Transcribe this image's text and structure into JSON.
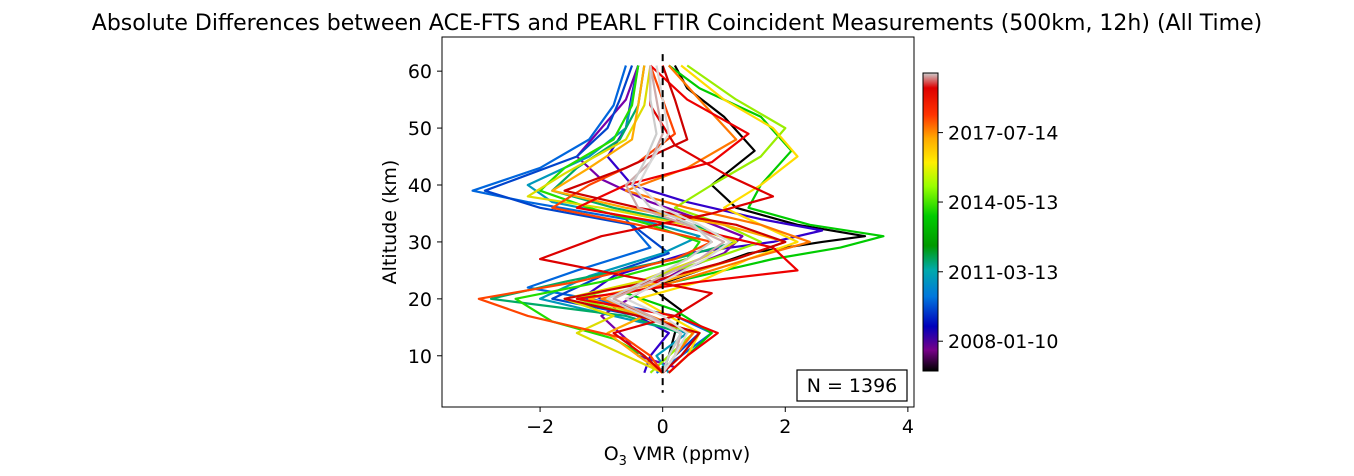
{
  "chart_data": {
    "type": "line",
    "title": "Absolute Differences between ACE-FTS and PEARL FTIR Coincident Measurements (500km, 12h) (All Time)",
    "xlabel_main": "O",
    "xlabel_sub": "3",
    "xlabel_rest": " VMR (ppmv)",
    "ylabel": "Altitude (km)",
    "xlim": [
      -3.6,
      4.1
    ],
    "ylim": [
      1,
      66
    ],
    "xticks": [
      -2,
      0,
      2,
      4
    ],
    "xtick_labels": [
      "−2",
      "0",
      "2",
      "4"
    ],
    "yticks": [
      10,
      20,
      30,
      40,
      50,
      60
    ],
    "ytick_labels": [
      "10",
      "20",
      "30",
      "40",
      "50",
      "60"
    ],
    "zero_line": {
      "x": 0,
      "style": "dashed",
      "color": "#000000"
    },
    "annotation": "N = 1396",
    "colorbar": {
      "colormap": "nipy_spectral",
      "tick_labels": [
        "2008-01-10",
        "2011-03-13",
        "2014-05-13",
        "2017-07-14"
      ],
      "tick_fractions": [
        0.1,
        0.333,
        0.567,
        0.8
      ]
    },
    "series_summary": {
      "count": 1396,
      "altitude_range": [
        6,
        61
      ],
      "note_values": "Each line is one coincident profile; x = ACE-FTS minus PEARL FTIR O3 VMR difference (ppmv) vs altitude (km)."
    },
    "series": [
      {
        "color": "#000000",
        "x": [
          0.0,
          0.1,
          0.2,
          0.3,
          -0.2,
          0.6,
          1.4,
          2.6,
          3.3,
          2.2,
          1.2,
          0.8,
          1.5,
          1.0,
          0.4,
          0.2
        ],
        "y": [
          7,
          10,
          14,
          18,
          22,
          25,
          28,
          30,
          31,
          33,
          36,
          40,
          46,
          52,
          57,
          61
        ]
      },
      {
        "color": "#3300cc",
        "x": [
          -0.3,
          -0.2,
          0.1,
          -0.6,
          -1.2,
          -0.8,
          0.4,
          1.8,
          2.6,
          1.6,
          0.4,
          -0.5,
          -0.9,
          -0.6,
          -0.5,
          -0.4
        ],
        "y": [
          7,
          10,
          14,
          18,
          21,
          24,
          28,
          30,
          32,
          34,
          37,
          40,
          45,
          50,
          56,
          61
        ]
      },
      {
        "color": "#7700aa",
        "x": [
          0.2,
          -0.4,
          -0.6,
          -1.0,
          -0.4,
          0.3,
          1.0,
          1.3,
          0.6,
          -0.2,
          -1.0,
          -1.4,
          -1.0,
          -0.6,
          -0.4
        ],
        "y": [
          8,
          10,
          13,
          17,
          21,
          25,
          28,
          31,
          34,
          37,
          41,
          45,
          50,
          55,
          61
        ]
      },
      {
        "color": "#0066dd",
        "x": [
          -0.1,
          0.3,
          0.8,
          0.2,
          -1.2,
          -2.2,
          -1.4,
          -0.2,
          -0.6,
          -2.2,
          -3.1,
          -2.0,
          -1.2,
          -0.8,
          -0.6
        ],
        "y": [
          7,
          10,
          14,
          17,
          20,
          22,
          25,
          29,
          34,
          37,
          39,
          43,
          48,
          54,
          61
        ]
      },
      {
        "color": "#0044cc",
        "x": [
          0.0,
          0.2,
          0.6,
          -0.4,
          -1.8,
          -1.0,
          0.1,
          -0.5,
          -2.0,
          -2.9,
          -2.4,
          -1.4,
          -0.9,
          -0.7,
          -0.5
        ],
        "y": [
          7,
          10,
          14,
          17,
          20,
          24,
          28,
          33,
          36,
          39,
          41,
          45,
          50,
          55,
          61
        ]
      },
      {
        "color": "#0099bb",
        "x": [
          0.1,
          -0.1,
          0.4,
          -0.8,
          -2.0,
          -1.2,
          0.0,
          0.6,
          -0.4,
          -1.8,
          -2.2,
          -1.2,
          -0.6,
          -0.5,
          -0.4
        ],
        "y": [
          7,
          10,
          14,
          17,
          20,
          24,
          28,
          31,
          34,
          37,
          40,
          45,
          50,
          55,
          61
        ]
      },
      {
        "color": "#00aa66",
        "x": [
          0.0,
          0.1,
          0.3,
          -0.6,
          -2.8,
          -1.6,
          0.2,
          1.2,
          0.5,
          -0.8,
          -1.8,
          -1.4,
          -0.7,
          -0.4,
          -0.3
        ],
        "y": [
          7,
          10,
          14,
          17,
          20,
          23,
          27,
          30,
          33,
          36,
          39,
          43,
          48,
          54,
          61
        ]
      },
      {
        "color": "#00cc00",
        "x": [
          0.1,
          0.4,
          0.8,
          0.2,
          -0.6,
          0.6,
          1.8,
          2.9,
          3.6,
          2.4,
          1.4,
          1.6,
          2.1,
          1.6,
          0.6,
          0.1
        ],
        "y": [
          7,
          10,
          14,
          18,
          21,
          24,
          27,
          29,
          31,
          33,
          36,
          40,
          46,
          52,
          57,
          61
        ]
      },
      {
        "color": "#22dd00",
        "x": [
          0.0,
          -0.3,
          -0.8,
          -1.8,
          -2.4,
          -1.0,
          0.4,
          0.6,
          -0.2,
          -1.2,
          -2.0,
          -1.6,
          -0.8,
          -0.5,
          -0.4
        ],
        "y": [
          7,
          10,
          13,
          16,
          20,
          23,
          27,
          30,
          33,
          36,
          39,
          43,
          48,
          54,
          61
        ]
      },
      {
        "color": "#99ee00",
        "x": [
          -0.2,
          0.1,
          0.5,
          -0.4,
          -1.4,
          -0.4,
          0.8,
          1.6,
          1.0,
          0.2,
          0.8,
          1.6,
          2.0,
          1.2,
          0.4
        ],
        "y": [
          7,
          10,
          14,
          17,
          20,
          23,
          27,
          30,
          33,
          36,
          40,
          45,
          50,
          55,
          61
        ]
      },
      {
        "color": "#dddd00",
        "x": [
          0.0,
          -0.6,
          -1.4,
          -0.8,
          -1.6,
          -0.4,
          0.6,
          1.2,
          0.4,
          -1.0,
          -2.2,
          -1.6,
          -0.6,
          -0.3,
          -0.2
        ],
        "y": [
          7,
          10,
          14,
          17,
          20,
          23,
          27,
          30,
          33,
          36,
          38,
          42,
          48,
          54,
          61
        ]
      },
      {
        "color": "#ffdd00",
        "x": [
          0.1,
          0.4,
          0.6,
          0.1,
          -0.4,
          0.6,
          1.4,
          2.2,
          1.6,
          1.0,
          1.6,
          2.2,
          1.8,
          1.0,
          0.3
        ],
        "y": [
          7,
          10,
          14,
          17,
          20,
          23,
          27,
          30,
          33,
          36,
          40,
          45,
          50,
          55,
          61
        ]
      },
      {
        "color": "#ffaa00",
        "x": [
          0.0,
          -0.4,
          -0.9,
          -0.3,
          -1.2,
          0.0,
          1.2,
          2.0,
          1.0,
          -0.6,
          -1.8,
          -1.2,
          -0.5,
          -0.4,
          -0.3
        ],
        "y": [
          7,
          10,
          14,
          17,
          20,
          23,
          27,
          30,
          33,
          36,
          39,
          43,
          48,
          54,
          61
        ]
      },
      {
        "color": "#ff7700",
        "x": [
          0.0,
          0.2,
          0.5,
          -0.2,
          -1.0,
          0.2,
          1.4,
          2.4,
          1.6,
          0.4,
          -0.6,
          0.4,
          1.2,
          0.6,
          0.1
        ],
        "y": [
          7,
          10,
          14,
          17,
          20,
          23,
          27,
          30,
          33,
          36,
          39,
          43,
          48,
          55,
          61
        ]
      },
      {
        "color": "#ff4400",
        "x": [
          0.0,
          -0.2,
          -0.6,
          -2.2,
          -3.0,
          -1.4,
          0.2,
          0.8,
          -0.4,
          -1.8,
          -1.2,
          -0.4,
          0.2,
          0.0,
          -0.2
        ],
        "y": [
          7,
          10,
          13,
          17,
          20,
          23,
          27,
          30,
          33,
          36,
          40,
          44,
          49,
          55,
          61
        ]
      },
      {
        "color": "#ee0000",
        "x": [
          0.1,
          0.4,
          0.9,
          0.2,
          -1.4,
          0.6,
          2.2,
          1.8,
          0.2,
          -1.4,
          -0.6,
          0.8,
          1.4,
          0.4,
          -0.2
        ],
        "y": [
          7,
          10,
          14,
          17,
          20,
          23,
          25,
          29,
          33,
          36,
          40,
          44,
          49,
          55,
          61
        ]
      },
      {
        "color": "#dd0000",
        "x": [
          0.0,
          -0.3,
          -0.8,
          0.2,
          0.8,
          -0.6,
          -2.0,
          -1.0,
          0.8,
          1.8,
          1.0,
          0.2,
          -0.2,
          -0.2
        ],
        "y": [
          7,
          10,
          14,
          17,
          21,
          24,
          27,
          31,
          35,
          38,
          42,
          47,
          54,
          61
        ]
      },
      {
        "color": "#cc0000",
        "x": [
          0.0,
          0.3,
          0.6,
          -0.4,
          -1.6,
          -0.2,
          1.2,
          2.0,
          1.2,
          -0.4,
          -1.6,
          -0.6,
          0.4,
          0.2,
          0.0
        ],
        "y": [
          7,
          10,
          14,
          17,
          20,
          23,
          27,
          30,
          33,
          36,
          39,
          43,
          48,
          55,
          61
        ]
      },
      {
        "color": "#ccaaaa",
        "x": [
          0.0,
          0.2,
          0.3,
          -0.2,
          -0.8,
          -0.2,
          0.6,
          1.0,
          0.4,
          -0.4,
          -0.6,
          -0.2,
          0.0,
          -0.1,
          -0.2
        ],
        "y": [
          7,
          10,
          14,
          17,
          20,
          23,
          27,
          30,
          33,
          36,
          40,
          44,
          49,
          55,
          61
        ]
      },
      {
        "color": "#cccccc",
        "x": [
          0.0,
          0.1,
          0.3,
          -0.3,
          -0.9,
          -0.3,
          0.4,
          0.8,
          0.5,
          -0.2,
          -0.5,
          -0.3,
          -0.1,
          -0.2,
          -0.2
        ],
        "y": [
          7,
          10,
          14,
          17,
          20,
          23,
          27,
          30,
          33,
          36,
          40,
          44,
          49,
          55,
          61
        ]
      },
      {
        "color": "#d8d8d8",
        "x": [
          0.0,
          0.2,
          0.4,
          0.0,
          -0.6,
          0.0,
          0.7,
          1.1,
          0.6,
          0.0,
          -0.4,
          -0.2,
          0.1,
          0.0,
          -0.1
        ],
        "y": [
          7,
          10,
          14,
          17,
          20,
          23,
          27,
          30,
          33,
          36,
          40,
          44,
          49,
          55,
          61
        ]
      }
    ]
  }
}
